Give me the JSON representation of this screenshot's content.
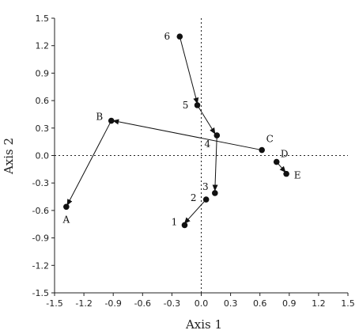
{
  "chart_data": {
    "type": "scatter",
    "xlabel": "Axis 1",
    "ylabel": "Axis 2",
    "xlim": [
      -1.5,
      1.5
    ],
    "ylim": [
      -1.5,
      1.5
    ],
    "xticks": [
      "-1.5",
      "-1.2",
      "-0.9",
      "-0.6",
      "-0.3",
      "0.0",
      "0.3",
      "0.6",
      "0.9",
      "1.2",
      "1.5"
    ],
    "yticks": [
      "1.5",
      "1.2",
      "0.9",
      "0.6",
      "0.3",
      "0.0",
      "-0.3",
      "-0.6",
      "-0.9",
      "-1.2",
      "-1.5"
    ],
    "reference_lines": {
      "x": 0,
      "y": 0,
      "style": "dotted"
    },
    "points": [
      {
        "label": "6",
        "x": -0.22,
        "y": 1.3
      },
      {
        "label": "5",
        "x": -0.04,
        "y": 0.55
      },
      {
        "label": "4",
        "x": 0.16,
        "y": 0.22
      },
      {
        "label": "3",
        "x": 0.14,
        "y": -0.41
      },
      {
        "label": "2",
        "x": 0.05,
        "y": -0.48
      },
      {
        "label": "1",
        "x": -0.17,
        "y": -0.76
      },
      {
        "label": "B",
        "x": -0.92,
        "y": 0.38
      },
      {
        "label": "A",
        "x": -1.38,
        "y": -0.56
      },
      {
        "label": "C",
        "x": 0.62,
        "y": 0.06
      },
      {
        "label": "D",
        "x": 0.77,
        "y": -0.07
      },
      {
        "label": "E",
        "x": 0.87,
        "y": -0.2
      }
    ],
    "arrows": [
      {
        "from": [
          -0.22,
          1.3
        ],
        "to": [
          -0.04,
          0.57
        ]
      },
      {
        "from": [
          -0.04,
          0.55
        ],
        "to": [
          0.14,
          0.24
        ]
      },
      {
        "from": [
          0.16,
          0.22
        ],
        "to": [
          0.14,
          -0.38
        ]
      },
      {
        "from": [
          0.05,
          -0.48
        ],
        "to": [
          -0.17,
          -0.74
        ]
      },
      {
        "from": [
          0.62,
          0.06
        ],
        "to": [
          -0.9,
          0.38
        ]
      },
      {
        "from": [
          -0.92,
          0.38
        ],
        "to": [
          -1.37,
          -0.54
        ]
      },
      {
        "from": [
          0.77,
          -0.07
        ],
        "to": [
          0.86,
          -0.18
        ]
      }
    ],
    "grid": false
  }
}
